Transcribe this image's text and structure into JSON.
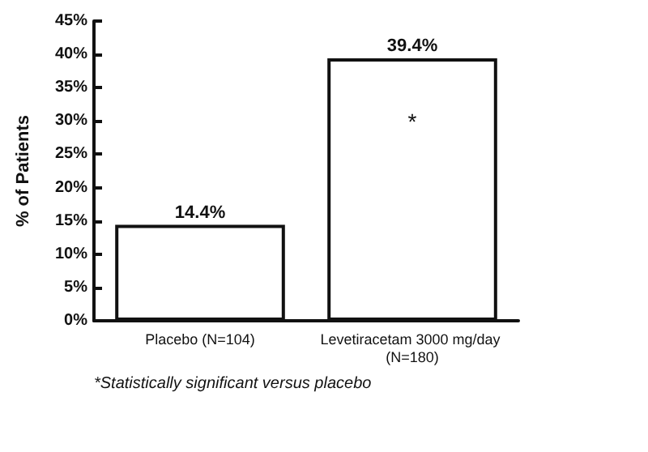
{
  "chart_data": {
    "type": "bar",
    "ylabel": "% of Patients",
    "categories": [
      "Placebo (N=104)",
      "Levetiracetam 3000 mg/day (N=180)"
    ],
    "values": [
      14.4,
      39.4
    ],
    "value_labels": [
      "14.4%",
      "39.4%"
    ],
    "color": "#ffffff",
    "ylim": [
      0,
      45
    ],
    "yticks": [
      {
        "value": 0,
        "label": "0%"
      },
      {
        "value": 5,
        "label": "5%"
      },
      {
        "value": 10,
        "label": "10%"
      },
      {
        "value": 15,
        "label": "15%"
      },
      {
        "value": 20,
        "label": "20%"
      },
      {
        "value": 25,
        "label": "25%"
      },
      {
        "value": 30,
        "label": "30%"
      },
      {
        "value": 35,
        "label": "35%"
      },
      {
        "value": 40,
        "label": "40%"
      },
      {
        "value": 45,
        "label": "45%"
      }
    ],
    "grid": false,
    "annotations": [
      "*",
      "*Statistically significant versus placebo"
    ]
  }
}
